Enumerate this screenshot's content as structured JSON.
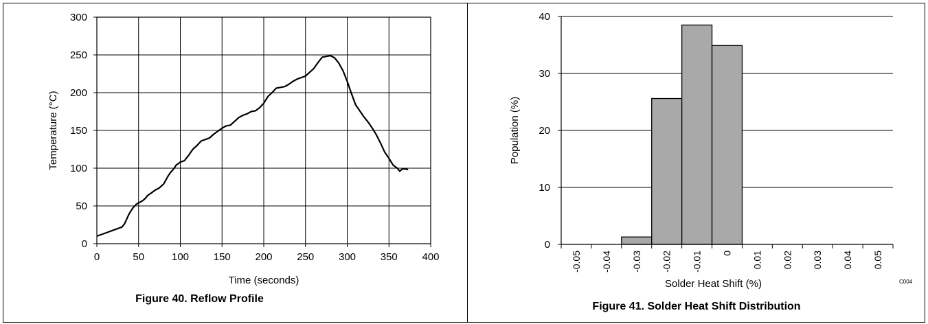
{
  "figures": [
    {
      "caption": "Figure 40. Reflow Profile"
    },
    {
      "caption": "Figure 41. Solder Heat Shift Distribution",
      "code": "C004"
    }
  ],
  "chart_data": [
    {
      "type": "line",
      "title": "",
      "xlabel": "Time (seconds)",
      "ylabel": "Temperature (°C)",
      "xlim": [
        0,
        400
      ],
      "ylim": [
        0,
        300
      ],
      "xticks": [
        0,
        50,
        100,
        150,
        200,
        250,
        300,
        350,
        400
      ],
      "yticks": [
        0,
        50,
        100,
        150,
        200,
        250,
        300
      ],
      "grid": true,
      "series": [
        {
          "x": [
            0,
            10,
            20,
            30,
            33,
            36,
            38,
            40,
            43,
            47,
            50,
            55,
            58,
            61,
            65,
            70,
            75,
            80,
            85,
            88,
            92,
            95,
            100,
            105,
            110,
            115,
            120,
            125,
            130,
            135,
            140,
            145,
            150,
            155,
            160,
            165,
            170,
            175,
            180,
            185,
            190,
            195,
            200,
            205,
            210,
            215,
            220,
            225,
            230,
            235,
            240,
            245,
            250,
            255,
            260,
            265,
            270,
            275,
            280,
            285,
            290,
            295,
            300,
            305,
            310,
            315,
            320,
            325,
            330,
            335,
            340,
            345,
            350,
            355,
            360,
            363,
            366,
            370,
            373
          ],
          "y": [
            10,
            14,
            18,
            22,
            26,
            33,
            38,
            42,
            47,
            52,
            54,
            57,
            60,
            64,
            67,
            71,
            74,
            79,
            89,
            94,
            99,
            104,
            108,
            110,
            117,
            125,
            130,
            136,
            138,
            140,
            145,
            149,
            153,
            156,
            157,
            162,
            167,
            170,
            172,
            175,
            176,
            180,
            186,
            195,
            200,
            206,
            207,
            208,
            211,
            215,
            218,
            220,
            222,
            227,
            232,
            240,
            247,
            248,
            249,
            246,
            239,
            229,
            215,
            199,
            184,
            176,
            168,
            161,
            153,
            144,
            133,
            121,
            113,
            104,
            100,
            96,
            99,
            99,
            98
          ]
        }
      ]
    },
    {
      "type": "bar",
      "title": "",
      "xlabel": "Solder Heat Shift (%)",
      "ylabel": "Population (%)",
      "ylim": [
        0,
        40
      ],
      "yticks": [
        0,
        10,
        20,
        30,
        40
      ],
      "xticks": [
        "-0.05",
        "-0.04",
        "-0.03",
        "-0.02",
        "-0.01",
        "0",
        "0.01",
        "0.02",
        "0.03",
        "0.04",
        "0.05"
      ],
      "grid": true,
      "bins": [
        {
          "from": -0.035,
          "to": -0.025,
          "value": 1.3
        },
        {
          "from": -0.025,
          "to": -0.015,
          "value": 25.6
        },
        {
          "from": -0.015,
          "to": -0.005,
          "value": 38.5
        },
        {
          "from": -0.005,
          "to": 0.005,
          "value": 34.9
        }
      ],
      "bar_color": "#a9a9a9"
    }
  ]
}
